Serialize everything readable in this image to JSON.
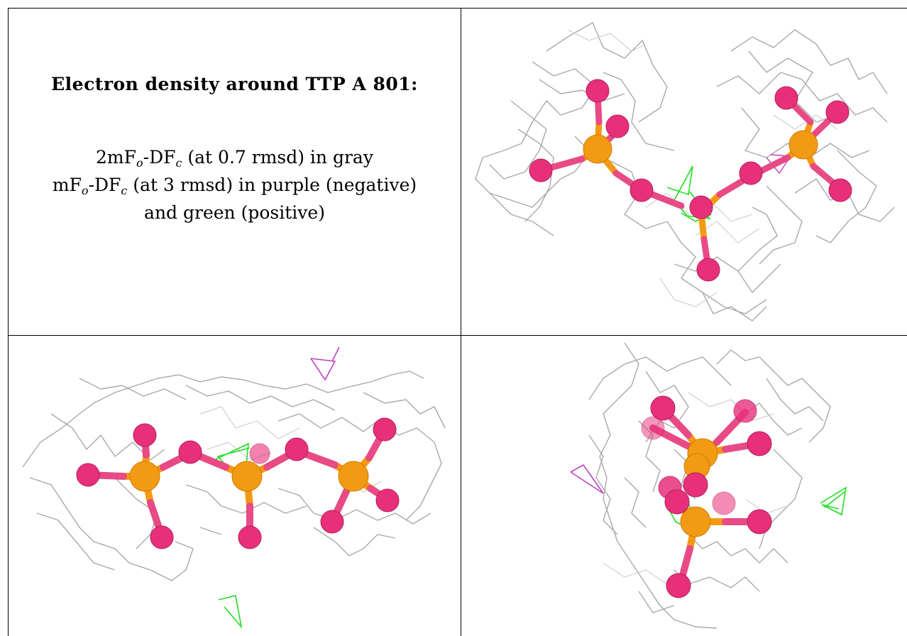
{
  "caption": {
    "title": "Electron density around TTP A 801:",
    "line1": {
      "a": "2mF",
      "a_sub": "o",
      "b": "-DF",
      "b_sub": "c",
      "rest": " (at 0.7 rmsd) in gray"
    },
    "line2": {
      "a": "mF",
      "a_sub": "o",
      "b": "-DF",
      "b_sub": "c",
      "rest": " (at 3 rmsd) in purple (negative)"
    },
    "line3": "and green (positive)"
  },
  "colors": {
    "mesh_gray": "#9a9a9a",
    "mesh_light": "#c8c8c8",
    "negative_purple": "#c040c0",
    "positive_green": "#22dd22",
    "oxygen_pink": "#e8307a",
    "phosphorus_orange": "#f39a14",
    "bond_pink": "#e84a86"
  },
  "views": [
    {
      "name": "top-right",
      "label": ""
    },
    {
      "name": "bottom-left",
      "label": ""
    },
    {
      "name": "bottom-right",
      "label": ""
    }
  ]
}
